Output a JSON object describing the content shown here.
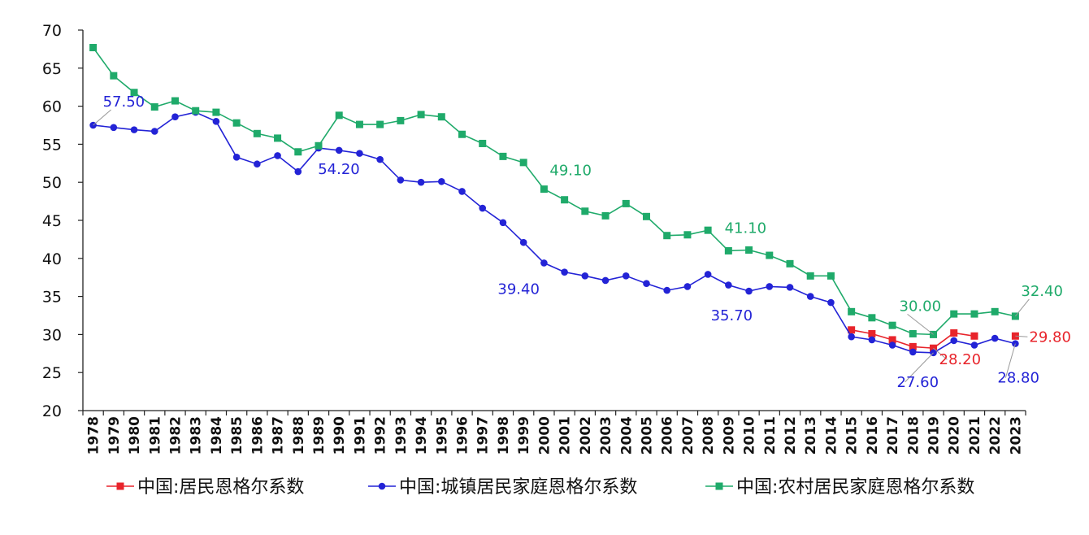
{
  "chart_data": {
    "type": "line",
    "title": "",
    "xlabel": "",
    "ylabel": "",
    "ylim": [
      20,
      70
    ],
    "yticks": [
      20,
      25,
      30,
      35,
      40,
      45,
      50,
      55,
      60,
      65,
      70
    ],
    "x": [
      1978,
      1979,
      1980,
      1981,
      1982,
      1983,
      1984,
      1985,
      1986,
      1987,
      1988,
      1989,
      1990,
      1991,
      1992,
      1993,
      1994,
      1995,
      1996,
      1997,
      1998,
      1999,
      2000,
      2001,
      2002,
      2003,
      2004,
      2005,
      2006,
      2007,
      2008,
      2009,
      2010,
      2011,
      2012,
      2013,
      2014,
      2015,
      2016,
      2017,
      2018,
      2019,
      2020,
      2021,
      2022,
      2023
    ],
    "series": [
      {
        "name": "中国:居民恩格尔系数",
        "color": "#e8242b",
        "marker": "square",
        "values": [
          null,
          null,
          null,
          null,
          null,
          null,
          null,
          null,
          null,
          null,
          null,
          null,
          null,
          null,
          null,
          null,
          null,
          null,
          null,
          null,
          null,
          null,
          null,
          null,
          null,
          null,
          null,
          null,
          null,
          null,
          null,
          null,
          null,
          null,
          null,
          null,
          null,
          30.6,
          30.1,
          29.3,
          28.4,
          28.2,
          30.2,
          29.8,
          null,
          29.8
        ]
      },
      {
        "name": "中国:城镇居民家庭恩格尔系数",
        "color": "#2323d6",
        "marker": "circle",
        "values": [
          57.5,
          57.2,
          56.9,
          56.7,
          58.6,
          59.2,
          58.0,
          53.3,
          52.4,
          53.5,
          51.4,
          54.5,
          54.2,
          53.8,
          53.0,
          50.3,
          50.0,
          50.1,
          48.8,
          46.6,
          44.7,
          42.1,
          39.4,
          38.2,
          37.7,
          37.1,
          37.7,
          36.7,
          35.8,
          36.3,
          37.9,
          36.5,
          35.7,
          36.3,
          36.2,
          35.0,
          34.2,
          29.7,
          29.3,
          28.6,
          27.7,
          27.6,
          29.2,
          28.6,
          29.5,
          28.8
        ]
      },
      {
        "name": "中国:农村居民家庭恩格尔系数",
        "color": "#1faa6a",
        "marker": "square",
        "values": [
          67.7,
          64.0,
          61.8,
          59.9,
          60.7,
          59.4,
          59.2,
          57.8,
          56.4,
          55.8,
          54.0,
          54.8,
          58.8,
          57.6,
          57.6,
          58.1,
          58.9,
          58.6,
          56.3,
          55.1,
          53.4,
          52.6,
          49.1,
          47.7,
          46.2,
          45.6,
          47.2,
          45.5,
          43.0,
          43.1,
          43.7,
          41.0,
          41.1,
          40.4,
          39.3,
          37.7,
          37.7,
          33.0,
          32.2,
          31.2,
          30.1,
          30.0,
          32.7,
          32.7,
          33.0,
          32.4
        ]
      }
    ],
    "annotations": [
      {
        "text": "57.50",
        "series": 1,
        "year": 1978,
        "color": "#2323d6"
      },
      {
        "text": "54.20",
        "series": 1,
        "year": 1990,
        "color": "#2323d6"
      },
      {
        "text": "39.40",
        "series": 1,
        "year": 2000,
        "color": "#2323d6"
      },
      {
        "text": "35.70",
        "series": 1,
        "year": 2010,
        "color": "#2323d6"
      },
      {
        "text": "27.60",
        "series": 1,
        "year": 2019,
        "color": "#2323d6"
      },
      {
        "text": "28.80",
        "series": 1,
        "year": 2023,
        "color": "#2323d6"
      },
      {
        "text": "49.10",
        "series": 2,
        "year": 2000,
        "color": "#1faa6a"
      },
      {
        "text": "41.10",
        "series": 2,
        "year": 2010,
        "color": "#1faa6a"
      },
      {
        "text": "30.00",
        "series": 2,
        "year": 2019,
        "color": "#1faa6a"
      },
      {
        "text": "32.40",
        "series": 2,
        "year": 2023,
        "color": "#1faa6a"
      },
      {
        "text": "28.20",
        "series": 0,
        "year": 2019,
        "color": "#e8242b"
      },
      {
        "text": "29.80",
        "series": 0,
        "year": 2023,
        "color": "#e8242b"
      }
    ],
    "legend_position": "bottom"
  }
}
